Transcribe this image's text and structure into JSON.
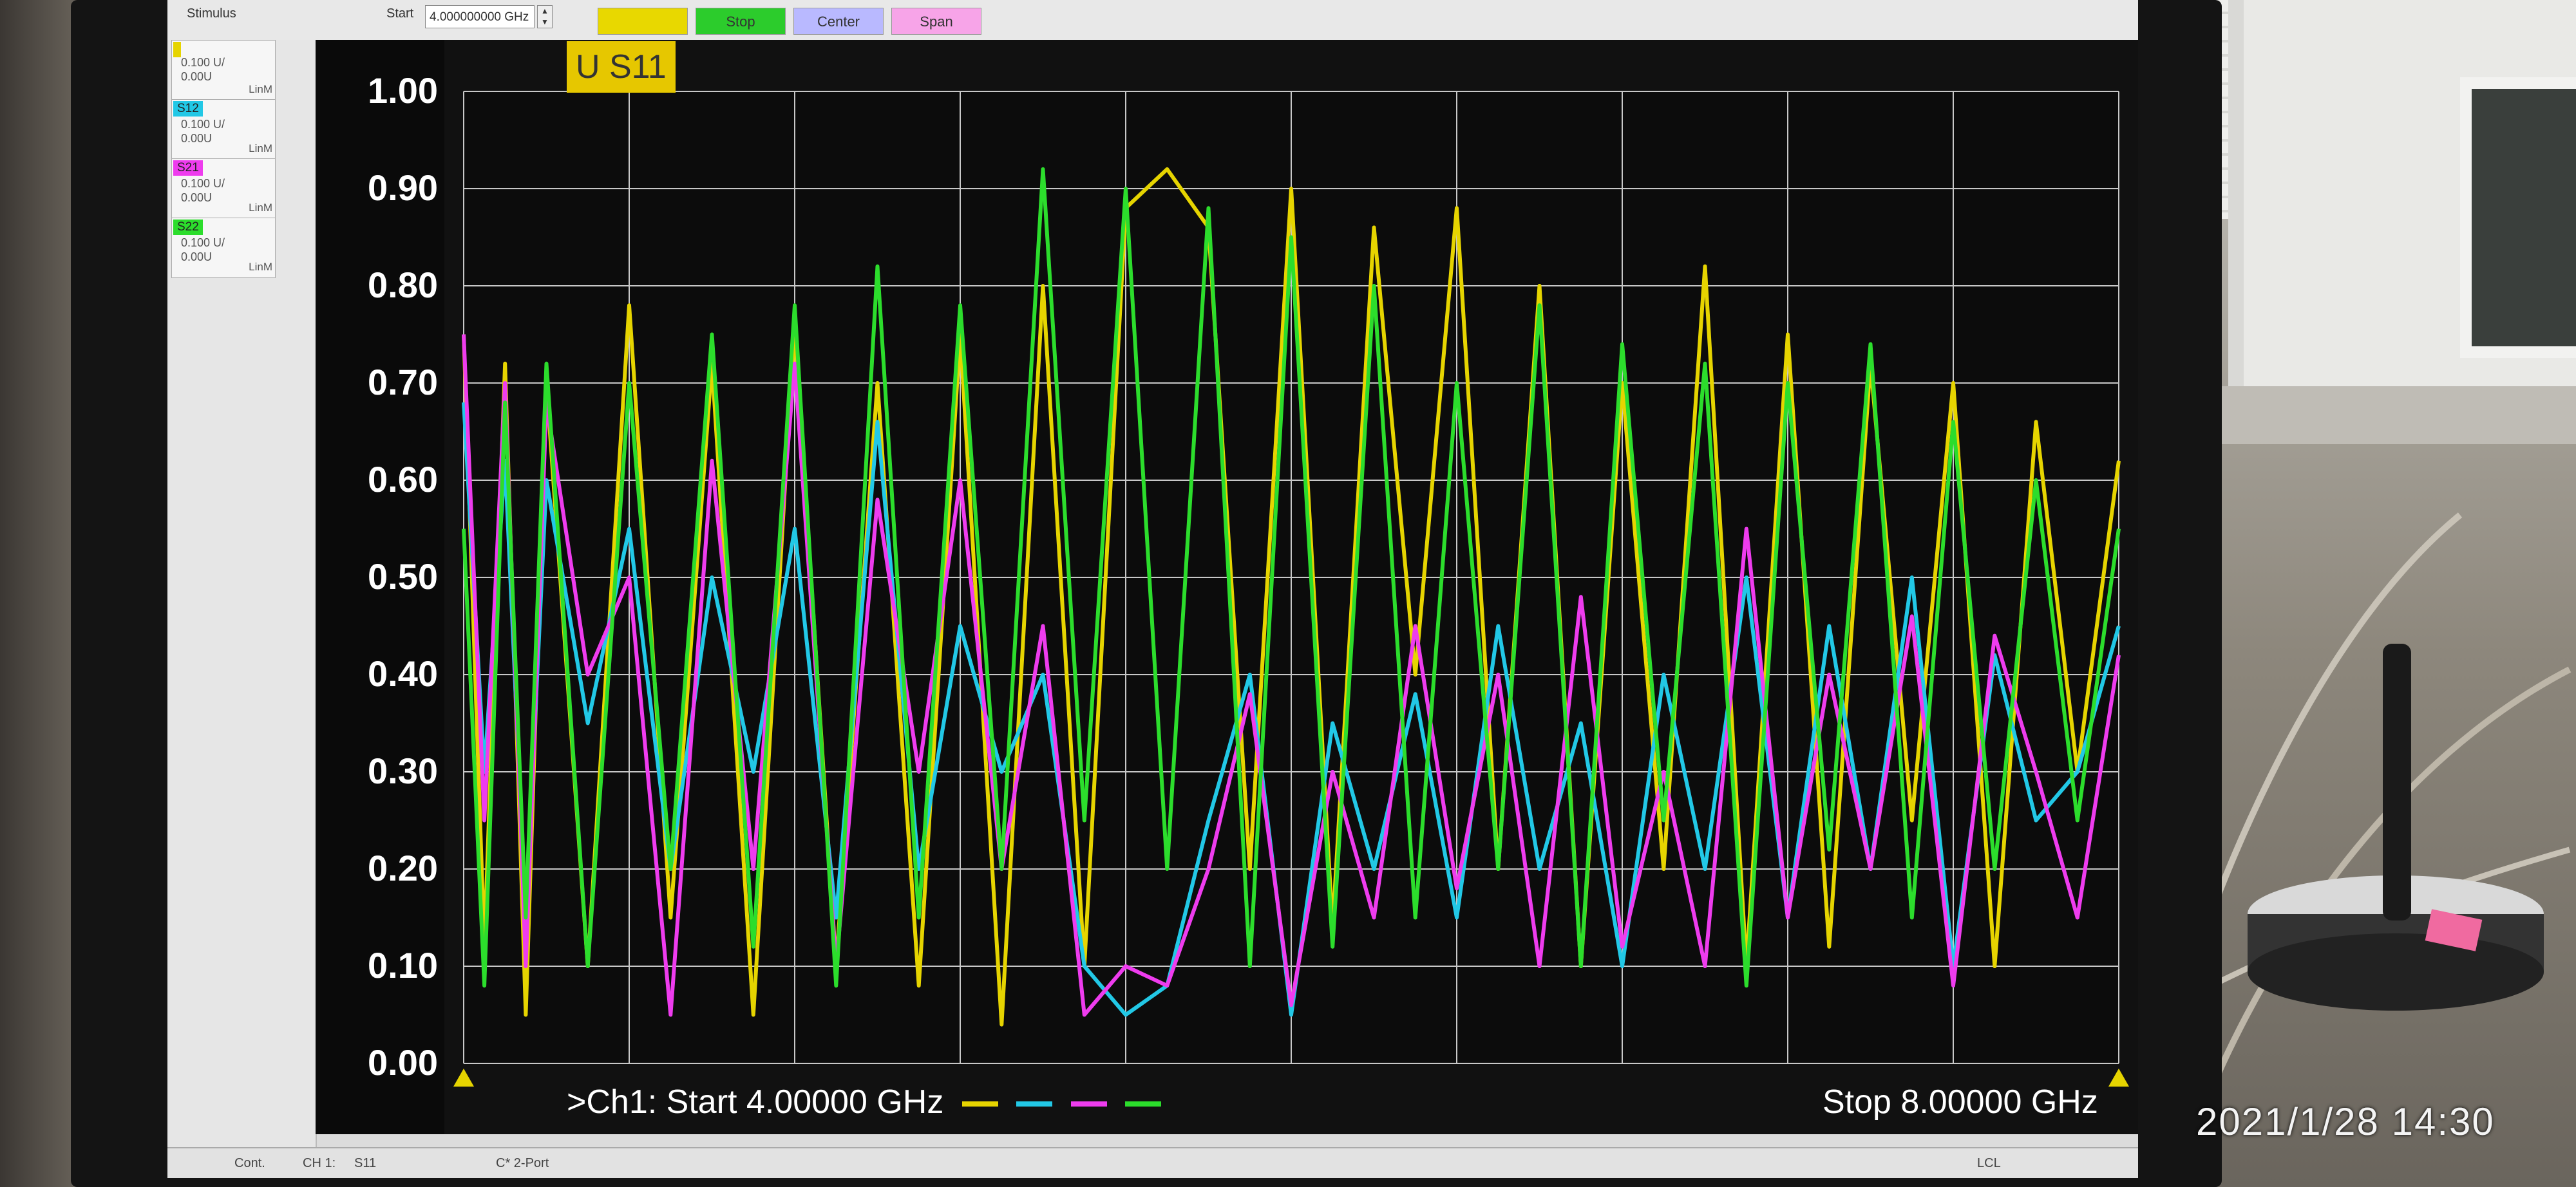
{
  "toolbar": {
    "stimulus_label": "Stimulus",
    "start_label": "Start",
    "start_value": "4.000000000 GHz",
    "buttons": [
      {
        "label": "",
        "color": "#e8d800"
      },
      {
        "label": "Stop",
        "color": "#2ccc2c"
      },
      {
        "label": "Center",
        "color": "#b9b9ff"
      },
      {
        "label": "Span",
        "color": "#f7a4e8"
      }
    ]
  },
  "traces": [
    {
      "name": "",
      "scale": "0.100 U/",
      "ref": "0.00U",
      "unit": "LinM",
      "color": "#e6d400"
    },
    {
      "name": "S12",
      "scale": "0.100 U/",
      "ref": "0.00U",
      "unit": "LinM",
      "color": "#22c8e6"
    },
    {
      "name": "S21",
      "scale": "0.100 U/",
      "ref": "0.00U",
      "unit": "LinM",
      "color": "#ee3cee"
    },
    {
      "name": "S22",
      "scale": "0.100 U/",
      "ref": "0.00U",
      "unit": "LinM",
      "color": "#2cdd2c"
    }
  ],
  "plot": {
    "active_trace_label": "U S11",
    "footer_start": ">Ch1: Start  4.00000 GHz",
    "footer_stop": "Stop  8.00000 GHz"
  },
  "chart_data": {
    "type": "line",
    "x_start_ghz": 4.0,
    "x_stop_ghz": 8.0,
    "ylim": [
      0.0,
      1.0
    ],
    "yticks": [
      "1.00",
      "0.90",
      "0.80",
      "0.70",
      "0.60",
      "0.50",
      "0.40",
      "0.30",
      "0.20",
      "0.10",
      "0.00"
    ],
    "grid": true,
    "series": [
      {
        "name": "S11",
        "color": "#e6d400",
        "x": [
          4.0,
          4.05,
          4.1,
          4.15,
          4.2,
          4.3,
          4.4,
          4.5,
          4.6,
          4.7,
          4.8,
          4.9,
          5.0,
          5.1,
          5.2,
          5.3,
          5.4,
          5.5,
          5.6,
          5.7,
          5.8,
          5.9,
          6.0,
          6.1,
          6.2,
          6.3,
          6.4,
          6.5,
          6.6,
          6.7,
          6.8,
          6.9,
          7.0,
          7.1,
          7.2,
          7.3,
          7.4,
          7.5,
          7.6,
          7.7,
          7.8,
          7.9,
          8.0
        ],
        "y": [
          0.75,
          0.12,
          0.72,
          0.05,
          0.7,
          0.1,
          0.78,
          0.15,
          0.72,
          0.05,
          0.76,
          0.1,
          0.7,
          0.08,
          0.75,
          0.04,
          0.8,
          0.1,
          0.88,
          0.92,
          0.86,
          0.2,
          0.9,
          0.14,
          0.86,
          0.4,
          0.88,
          0.2,
          0.8,
          0.1,
          0.7,
          0.2,
          0.82,
          0.1,
          0.75,
          0.12,
          0.72,
          0.25,
          0.7,
          0.1,
          0.66,
          0.3,
          0.62
        ]
      },
      {
        "name": "S12",
        "color": "#22c8e6",
        "x": [
          4.0,
          4.05,
          4.1,
          4.15,
          4.2,
          4.3,
          4.4,
          4.5,
          4.6,
          4.7,
          4.8,
          4.9,
          5.0,
          5.1,
          5.2,
          5.3,
          5.4,
          5.5,
          5.6,
          5.7,
          5.8,
          5.9,
          6.0,
          6.1,
          6.2,
          6.3,
          6.4,
          6.5,
          6.6,
          6.7,
          6.8,
          6.9,
          7.0,
          7.1,
          7.2,
          7.3,
          7.4,
          7.5,
          7.6,
          7.7,
          7.8,
          7.9,
          8.0
        ],
        "y": [
          0.68,
          0.3,
          0.62,
          0.15,
          0.6,
          0.35,
          0.55,
          0.2,
          0.5,
          0.3,
          0.55,
          0.15,
          0.66,
          0.2,
          0.45,
          0.3,
          0.4,
          0.1,
          0.05,
          0.08,
          0.25,
          0.4,
          0.05,
          0.35,
          0.2,
          0.38,
          0.15,
          0.45,
          0.2,
          0.35,
          0.1,
          0.4,
          0.2,
          0.5,
          0.15,
          0.45,
          0.2,
          0.5,
          0.1,
          0.42,
          0.25,
          0.3,
          0.45
        ]
      },
      {
        "name": "S21",
        "color": "#ee3cee",
        "x": [
          4.0,
          4.05,
          4.1,
          4.15,
          4.2,
          4.3,
          4.4,
          4.5,
          4.6,
          4.7,
          4.8,
          4.9,
          5.0,
          5.1,
          5.2,
          5.3,
          5.4,
          5.5,
          5.6,
          5.7,
          5.8,
          5.9,
          6.0,
          6.1,
          6.2,
          6.3,
          6.4,
          6.5,
          6.6,
          6.7,
          6.8,
          6.9,
          7.0,
          7.1,
          7.2,
          7.3,
          7.4,
          7.5,
          7.6,
          7.7,
          7.8,
          7.9,
          8.0
        ],
        "y": [
          0.75,
          0.25,
          0.7,
          0.1,
          0.68,
          0.4,
          0.5,
          0.05,
          0.62,
          0.2,
          0.72,
          0.1,
          0.58,
          0.3,
          0.6,
          0.2,
          0.45,
          0.05,
          0.1,
          0.08,
          0.2,
          0.38,
          0.06,
          0.3,
          0.15,
          0.45,
          0.18,
          0.4,
          0.1,
          0.48,
          0.12,
          0.3,
          0.1,
          0.55,
          0.15,
          0.4,
          0.2,
          0.46,
          0.08,
          0.44,
          0.3,
          0.15,
          0.42
        ]
      },
      {
        "name": "S22",
        "color": "#2cdd2c",
        "x": [
          4.0,
          4.05,
          4.1,
          4.15,
          4.2,
          4.3,
          4.4,
          4.5,
          4.6,
          4.7,
          4.8,
          4.9,
          5.0,
          5.1,
          5.2,
          5.3,
          5.4,
          5.5,
          5.6,
          5.7,
          5.8,
          5.9,
          6.0,
          6.1,
          6.2,
          6.3,
          6.4,
          6.5,
          6.6,
          6.7,
          6.8,
          6.9,
          7.0,
          7.1,
          7.2,
          7.3,
          7.4,
          7.5,
          7.6,
          7.7,
          7.8,
          7.9,
          8.0
        ],
        "y": [
          0.55,
          0.08,
          0.68,
          0.15,
          0.72,
          0.1,
          0.7,
          0.2,
          0.75,
          0.12,
          0.78,
          0.08,
          0.82,
          0.15,
          0.78,
          0.2,
          0.92,
          0.25,
          0.9,
          0.2,
          0.88,
          0.1,
          0.85,
          0.12,
          0.8,
          0.15,
          0.7,
          0.2,
          0.78,
          0.1,
          0.74,
          0.25,
          0.72,
          0.08,
          0.7,
          0.22,
          0.74,
          0.15,
          0.66,
          0.2,
          0.6,
          0.25,
          0.55
        ]
      }
    ]
  },
  "statusbar": {
    "mode": "Cont.",
    "channel": "CH 1:",
    "trace": "S11",
    "cal": "C* 2-Port",
    "lcl": "LCL"
  },
  "photo": {
    "timestamp": "2021/1/28  14:30"
  }
}
